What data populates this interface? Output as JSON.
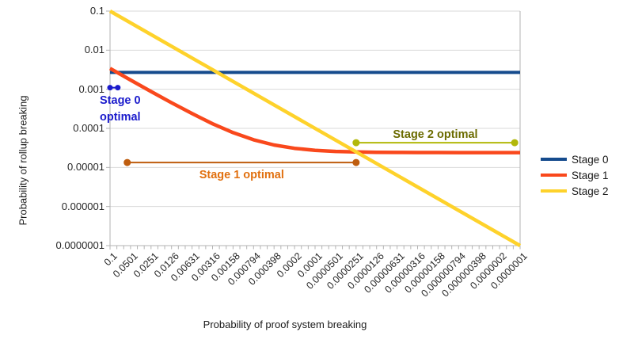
{
  "chart_data": {
    "type": "line",
    "title": "",
    "xlabel": "Probability of proof system breaking",
    "ylabel": "Probability of rollup breaking",
    "x_scale": "log",
    "y_scale": "log",
    "x_range": [
      0.1,
      1e-07
    ],
    "y_range": [
      0.1,
      1e-07
    ],
    "grid": "horizontal-decades",
    "legend_position": "right",
    "x_ticks": [
      "0.1",
      "0.0501",
      "0.0251",
      "0.0126",
      "0.00631",
      "0.00316",
      "0.00158",
      "0.000794",
      "0.000398",
      "0.0002",
      "0.0001",
      "0.0000501",
      "0.0000251",
      "0.0000126",
      "0.00000631",
      "0.00000316",
      "0.00000158",
      "0.000000794",
      "0.000000398",
      "0.0000002",
      "0.0000001"
    ],
    "y_ticks": [
      "0.1",
      "0.01",
      "0.001",
      "0.0001",
      "0.00001",
      "0.000001",
      "0.0000001"
    ],
    "series": [
      {
        "name": "Stage 0",
        "color": "#154b8d",
        "width": 4,
        "x": [
          0.1,
          1e-07
        ],
        "y": [
          0.0027,
          0.0027
        ]
      },
      {
        "name": "Stage 1",
        "color": "#f9481c",
        "width": 4.5,
        "x": [
          0.1,
          0.0501,
          0.0251,
          0.0126,
          0.00631,
          0.00316,
          0.00158,
          0.000794,
          0.000398,
          0.0002,
          0.0001,
          5.01e-05,
          2.51e-05,
          1.26e-05,
          6.31e-06,
          3.16e-06,
          1.58e-06,
          7.94e-07,
          3.98e-07,
          2e-07,
          1e-07
        ],
        "y": [
          0.003424,
          0.001727,
          0.000877,
          0.000452,
          0.000239,
          0.000131,
          7.77e-05,
          5.1e-05,
          3.75e-05,
          3.08e-05,
          2.74e-05,
          2.57e-05,
          2.49e-05,
          2.44e-05,
          2.42e-05,
          2.41e-05,
          2.41e-05,
          2.4e-05,
          2.4e-05,
          2.4e-05,
          2.4e-05
        ]
      },
      {
        "name": "Stage 2",
        "color": "#fed22b",
        "width": 4.5,
        "x": [
          0.1,
          1e-07
        ],
        "y": [
          0.1,
          1e-07
        ]
      }
    ],
    "annotations": [
      {
        "name": "Stage 0 optimal",
        "lines": [
          "Stage 0",
          "optimal"
        ],
        "x_start": 0.1,
        "x_end": 0.077,
        "y": 0.0011,
        "line_color": "#1b1bcc",
        "text_color": "#1b1bcc",
        "dot_radius": 3.5
      },
      {
        "name": "Stage 1 optimal",
        "label": "Stage 1 optimal",
        "x_start": 0.056,
        "x_end": 2.51e-05,
        "y": 1.34e-05,
        "line_color": "#bf5d0e",
        "text_color": "#e1700f",
        "dot_radius": 4.5
      },
      {
        "name": "Stage 2 optimal",
        "label": "Stage 2 optimal",
        "x_start": 2.51e-05,
        "x_end": 1.2e-07,
        "y": 4.3e-05,
        "line_color": "#b2b80a",
        "text_color": "#6b6b00",
        "dot_radius": 4.5
      }
    ],
    "colors": {
      "gridline": "#d9d9d9",
      "axis": "#b3b3b3",
      "background": "#ffffff"
    }
  }
}
